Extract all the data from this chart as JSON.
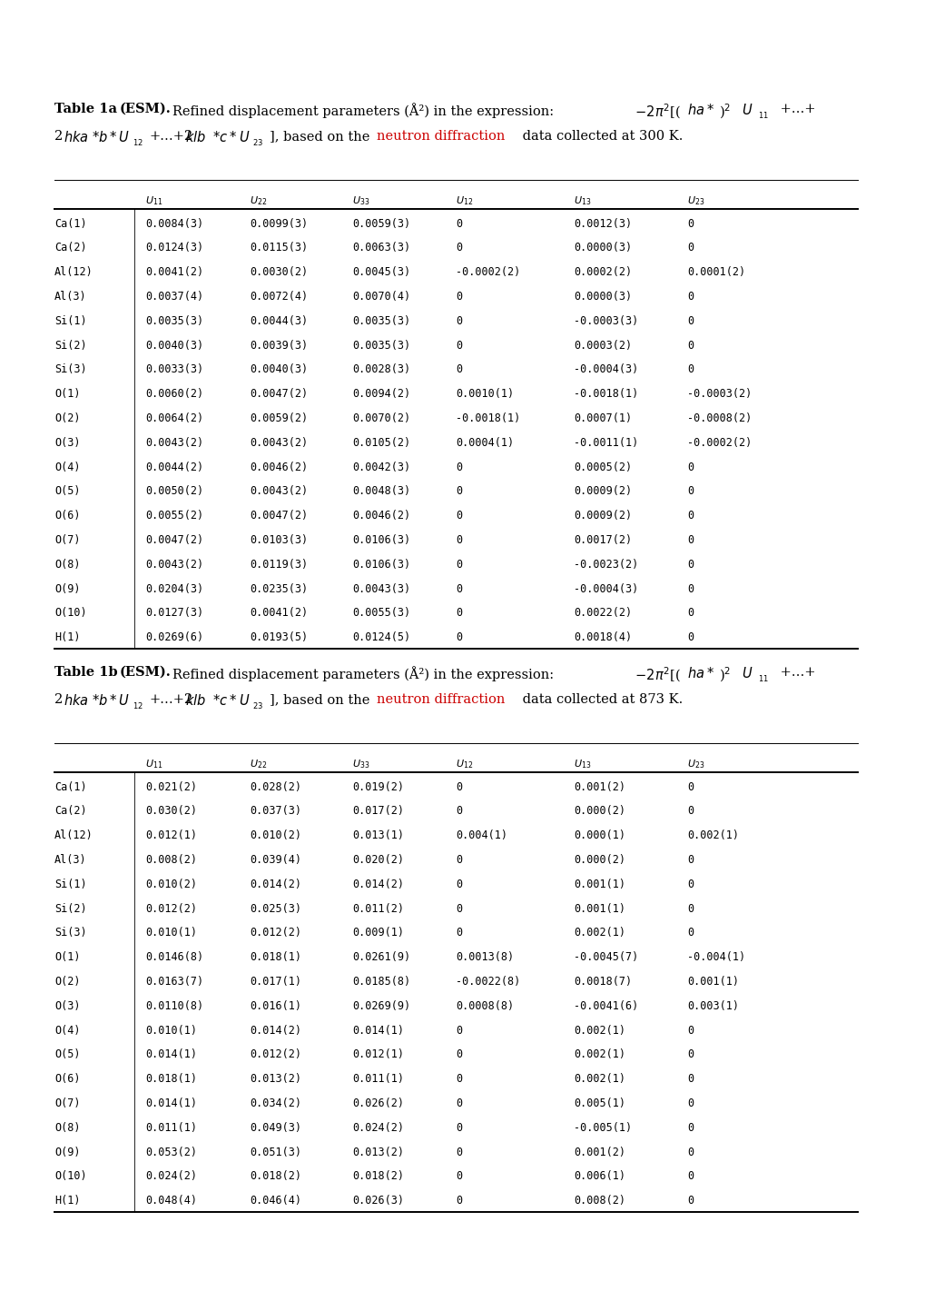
{
  "bg_color": "#ffffff",
  "text_color": "#000000",
  "red_color": "#cc0000",
  "table1_rows": [
    [
      "Ca(1)",
      "0.0084(3)",
      "0.0099(3)",
      "0.0059(3)",
      "0",
      "0.0012(3)",
      "0"
    ],
    [
      "Ca(2)",
      "0.0124(3)",
      "0.0115(3)",
      "0.0063(3)",
      "0",
      "0.0000(3)",
      "0"
    ],
    [
      "Al(12)",
      "0.0041(2)",
      "0.0030(2)",
      "0.0045(3)",
      "-0.0002(2)",
      "0.0002(2)",
      "0.0001(2)"
    ],
    [
      "Al(3)",
      "0.0037(4)",
      "0.0072(4)",
      "0.0070(4)",
      "0",
      "0.0000(3)",
      "0"
    ],
    [
      "Si(1)",
      "0.0035(3)",
      "0.0044(3)",
      "0.0035(3)",
      "0",
      "-0.0003(3)",
      "0"
    ],
    [
      "Si(2)",
      "0.0040(3)",
      "0.0039(3)",
      "0.0035(3)",
      "0",
      "0.0003(2)",
      "0"
    ],
    [
      "Si(3)",
      "0.0033(3)",
      "0.0040(3)",
      "0.0028(3)",
      "0",
      "-0.0004(3)",
      "0"
    ],
    [
      "O(1)",
      "0.0060(2)",
      "0.0047(2)",
      "0.0094(2)",
      "0.0010(1)",
      "-0.0018(1)",
      "-0.0003(2)"
    ],
    [
      "O(2)",
      "0.0064(2)",
      "0.0059(2)",
      "0.0070(2)",
      "-0.0018(1)",
      "0.0007(1)",
      "-0.0008(2)"
    ],
    [
      "O(3)",
      "0.0043(2)",
      "0.0043(2)",
      "0.0105(2)",
      "0.0004(1)",
      "-0.0011(1)",
      "-0.0002(2)"
    ],
    [
      "O(4)",
      "0.0044(2)",
      "0.0046(2)",
      "0.0042(3)",
      "0",
      "0.0005(2)",
      "0"
    ],
    [
      "O(5)",
      "0.0050(2)",
      "0.0043(2)",
      "0.0048(3)",
      "0",
      "0.0009(2)",
      "0"
    ],
    [
      "O(6)",
      "0.0055(2)",
      "0.0047(2)",
      "0.0046(2)",
      "0",
      "0.0009(2)",
      "0"
    ],
    [
      "O(7)",
      "0.0047(2)",
      "0.0103(3)",
      "0.0106(3)",
      "0",
      "0.0017(2)",
      "0"
    ],
    [
      "O(8)",
      "0.0043(2)",
      "0.0119(3)",
      "0.0106(3)",
      "0",
      "-0.0023(2)",
      "0"
    ],
    [
      "O(9)",
      "0.0204(3)",
      "0.0235(3)",
      "0.0043(3)",
      "0",
      "-0.0004(3)",
      "0"
    ],
    [
      "O(10)",
      "0.0127(3)",
      "0.0041(2)",
      "0.0055(3)",
      "0",
      "0.0022(2)",
      "0"
    ],
    [
      "H(1)",
      "0.0269(6)",
      "0.0193(5)",
      "0.0124(5)",
      "0",
      "0.0018(4)",
      "0"
    ]
  ],
  "table2_rows": [
    [
      "Ca(1)",
      "0.021(2)",
      "0.028(2)",
      "0.019(2)",
      "0",
      "0.001(2)",
      "0"
    ],
    [
      "Ca(2)",
      "0.030(2)",
      "0.037(3)",
      "0.017(2)",
      "0",
      "0.000(2)",
      "0"
    ],
    [
      "Al(12)",
      "0.012(1)",
      "0.010(2)",
      "0.013(1)",
      "0.004(1)",
      "0.000(1)",
      "0.002(1)"
    ],
    [
      "Al(3)",
      "0.008(2)",
      "0.039(4)",
      "0.020(2)",
      "0",
      "0.000(2)",
      "0"
    ],
    [
      "Si(1)",
      "0.010(2)",
      "0.014(2)",
      "0.014(2)",
      "0",
      "0.001(1)",
      "0"
    ],
    [
      "Si(2)",
      "0.012(2)",
      "0.025(3)",
      "0.011(2)",
      "0",
      "0.001(1)",
      "0"
    ],
    [
      "Si(3)",
      "0.010(1)",
      "0.012(2)",
      "0.009(1)",
      "0",
      "0.002(1)",
      "0"
    ],
    [
      "O(1)",
      "0.0146(8)",
      "0.018(1)",
      "0.0261(9)",
      "0.0013(8)",
      "-0.0045(7)",
      "-0.004(1)"
    ],
    [
      "O(2)",
      "0.0163(7)",
      "0.017(1)",
      "0.0185(8)",
      "-0.0022(8)",
      "0.0018(7)",
      "0.001(1)"
    ],
    [
      "O(3)",
      "0.0110(8)",
      "0.016(1)",
      "0.0269(9)",
      "0.0008(8)",
      "-0.0041(6)",
      "0.003(1)"
    ],
    [
      "O(4)",
      "0.010(1)",
      "0.014(2)",
      "0.014(1)",
      "0",
      "0.002(1)",
      "0"
    ],
    [
      "O(5)",
      "0.014(1)",
      "0.012(2)",
      "0.012(1)",
      "0",
      "0.002(1)",
      "0"
    ],
    [
      "O(6)",
      "0.018(1)",
      "0.013(2)",
      "0.011(1)",
      "0",
      "0.002(1)",
      "0"
    ],
    [
      "O(7)",
      "0.014(1)",
      "0.034(2)",
      "0.026(2)",
      "0",
      "0.005(1)",
      "0"
    ],
    [
      "O(8)",
      "0.011(1)",
      "0.049(3)",
      "0.024(2)",
      "0",
      "-0.005(1)",
      "0"
    ],
    [
      "O(9)",
      "0.053(2)",
      "0.051(3)",
      "0.013(2)",
      "0",
      "0.001(2)",
      "0"
    ],
    [
      "O(10)",
      "0.024(2)",
      "0.018(2)",
      "0.018(2)",
      "0",
      "0.006(1)",
      "0"
    ],
    [
      "H(1)",
      "0.048(4)",
      "0.046(4)",
      "0.026(3)",
      "0",
      "0.008(2)",
      "0"
    ]
  ],
  "temp1": "300",
  "temp2": "873"
}
